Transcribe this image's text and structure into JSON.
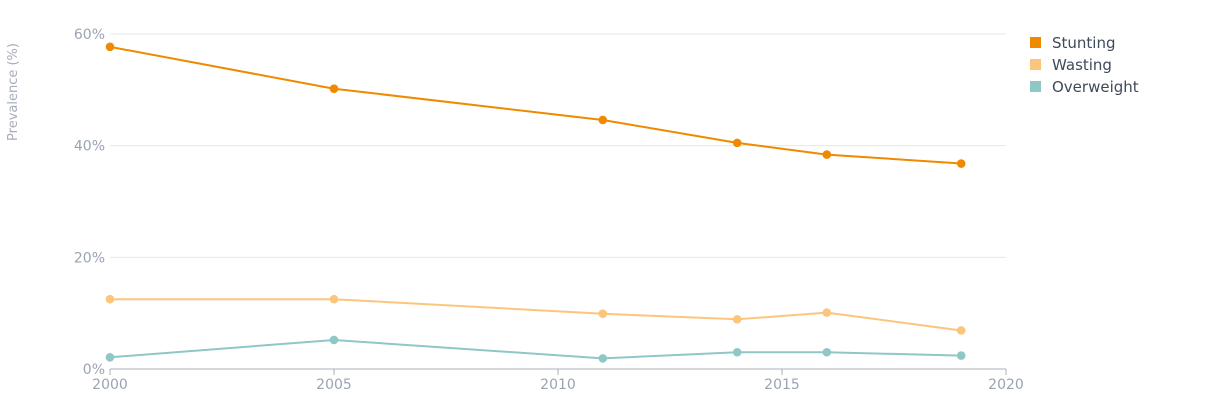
{
  "chart_data": {
    "type": "line",
    "title": "",
    "xlabel": "",
    "ylabel": "Prevalence (%)",
    "xlim": [
      2000,
      2020
    ],
    "ylim": [
      0,
      60
    ],
    "x_ticks": [
      {
        "value": 2000,
        "label": "2000"
      },
      {
        "value": 2005,
        "label": "2005"
      },
      {
        "value": 2010,
        "label": "2010"
      },
      {
        "value": 2015,
        "label": "2015"
      },
      {
        "value": 2020,
        "label": "2020"
      }
    ],
    "y_ticks": [
      {
        "value": 0,
        "label": "0%"
      },
      {
        "value": 20,
        "label": "20%"
      },
      {
        "value": 40,
        "label": "40%"
      },
      {
        "value": 60,
        "label": "60%"
      }
    ],
    "grid": true,
    "legend_position": "top-right",
    "series": [
      {
        "name": "Stunting",
        "color": "#ef8a00",
        "points": [
          [
            2000,
            57.7
          ],
          [
            2005,
            50.2
          ],
          [
            2011,
            44.6
          ],
          [
            2014,
            40.5
          ],
          [
            2016,
            38.4
          ],
          [
            2019,
            36.8
          ]
        ]
      },
      {
        "name": "Wasting",
        "color": "#fbc67c",
        "points": [
          [
            2000,
            12.5
          ],
          [
            2005,
            12.5
          ],
          [
            2011,
            9.9
          ],
          [
            2014,
            8.9
          ],
          [
            2016,
            10.1
          ],
          [
            2019,
            6.9
          ]
        ]
      },
      {
        "name": "Overweight",
        "color": "#8fc7c7",
        "points": [
          [
            2000,
            2.1
          ],
          [
            2005,
            5.2
          ],
          [
            2011,
            1.9
          ],
          [
            2014,
            3.0
          ],
          [
            2016,
            3.0
          ],
          [
            2019,
            2.4
          ]
        ]
      }
    ]
  }
}
